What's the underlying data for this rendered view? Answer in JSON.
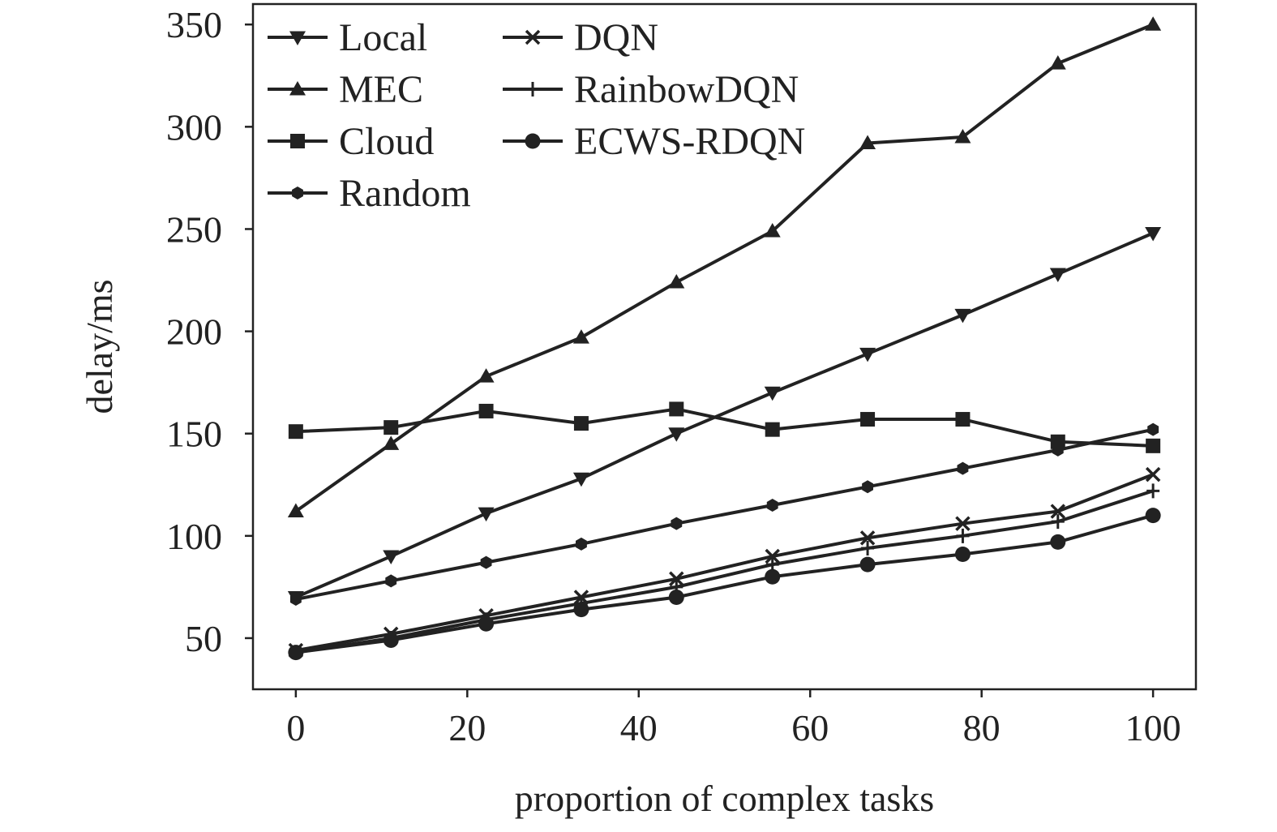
{
  "chart_data": {
    "type": "line",
    "title": "",
    "xlabel": "proportion of complex tasks",
    "ylabel": "delay/ms",
    "xlim": [
      -5,
      105
    ],
    "ylim": [
      25,
      360
    ],
    "xticks": [
      0,
      20,
      40,
      60,
      80,
      100
    ],
    "yticks": [
      50,
      100,
      150,
      200,
      250,
      300,
      350
    ],
    "grid": false,
    "legend_position": "top-left",
    "x": [
      0,
      11.1,
      22.2,
      33.3,
      44.4,
      55.6,
      66.7,
      77.8,
      88.9,
      100
    ],
    "series": [
      {
        "name": "Local",
        "marker": "triangle-down",
        "color": "#222222",
        "values": [
          70,
          90,
          111,
          128,
          150,
          170,
          189,
          208,
          228,
          248
        ]
      },
      {
        "name": "MEC",
        "marker": "triangle-up",
        "color": "#222222",
        "values": [
          112,
          145,
          178,
          197,
          224,
          249,
          292,
          295,
          331,
          350
        ]
      },
      {
        "name": "Cloud",
        "marker": "square",
        "color": "#222222",
        "values": [
          151,
          153,
          161,
          155,
          162,
          152,
          157,
          157,
          146,
          144
        ]
      },
      {
        "name": "Random",
        "marker": "hexagon",
        "color": "#222222",
        "values": [
          69,
          78,
          87,
          96,
          106,
          115,
          124,
          133,
          142,
          152
        ]
      },
      {
        "name": "DQN",
        "marker": "x",
        "color": "#222222",
        "values": [
          44,
          52,
          61,
          70,
          79,
          90,
          99,
          106,
          112,
          130
        ]
      },
      {
        "name": "RainbowDQN",
        "marker": "plus",
        "color": "#222222",
        "values": [
          43,
          50,
          59,
          67,
          75,
          86,
          94,
          100,
          107,
          122
        ]
      },
      {
        "name": "ECWS-RDQN",
        "marker": "circle",
        "color": "#222222",
        "values": [
          43,
          49,
          57,
          64,
          70,
          80,
          86,
          91,
          97,
          110
        ]
      }
    ]
  }
}
